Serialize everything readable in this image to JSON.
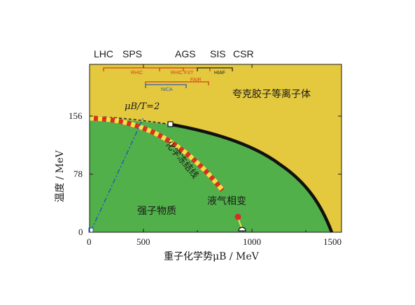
{
  "accelerators_top": [
    "LHC",
    "SPS",
    "AGS",
    "SIS",
    "CSR"
  ],
  "ranges": [
    {
      "label": "RHIC",
      "color": "#d8401c"
    },
    {
      "label": "RHIC FXT",
      "color": "#d8401c"
    },
    {
      "label": "HIAF",
      "color": "#222222"
    },
    {
      "label": "FAIR",
      "color": "#d8401c"
    },
    {
      "label": "NICA",
      "color": "#2b5fb0"
    }
  ],
  "regions": {
    "qgp": "夸克胶子等离子体",
    "hadronic": "强子物质"
  },
  "curve_labels": {
    "ratio_line": "μB/T=2",
    "freezeout": "化学冻结线",
    "liquid_gas": "液气相变"
  },
  "axes": {
    "x_title": "重子化学势μB / MeV",
    "y_title": "温度 / MeV",
    "x_ticks": [
      "0",
      "500",
      "1000",
      "1500"
    ],
    "y_ticks": [
      "0",
      "78",
      "156"
    ]
  },
  "colors": {
    "qgp": "#e4c83e",
    "hadronic": "#52b04a",
    "boundary": "#111111",
    "freezeout_red": "#d8311f",
    "freezeout_yellow": "#f0e04a",
    "ratio_line": "#1f5fb5",
    "critical_point": "#d92b2b"
  }
}
